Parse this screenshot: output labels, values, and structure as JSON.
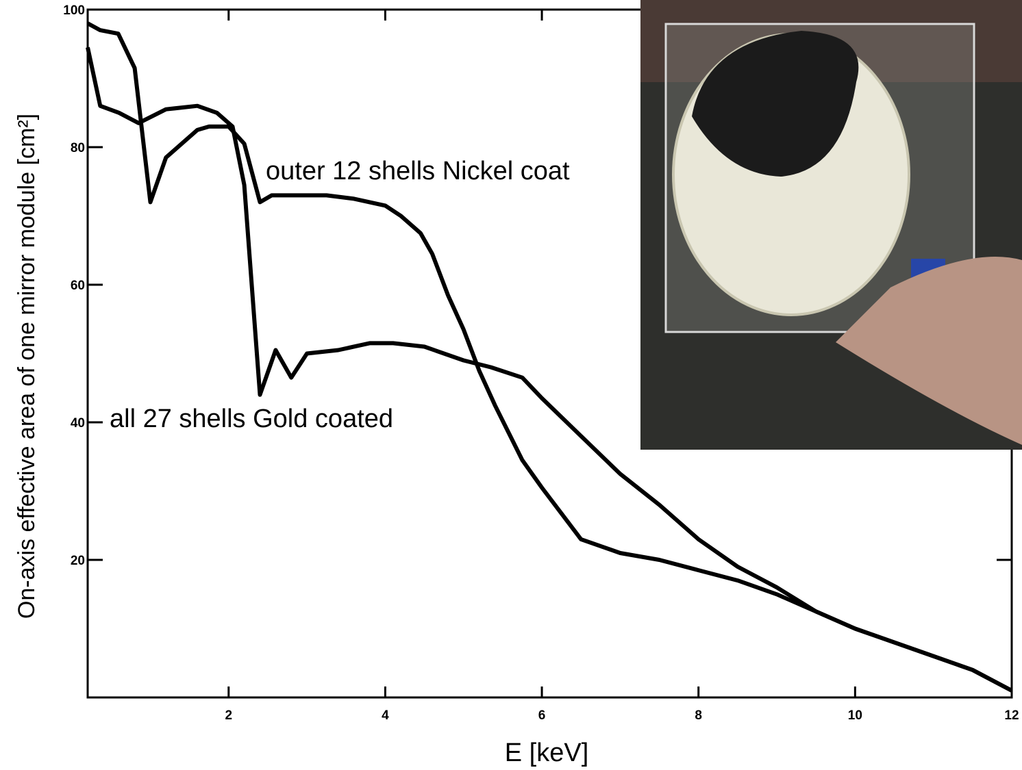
{
  "chart_data": {
    "type": "line",
    "x_label": "E [keV]",
    "y_label": "On-axis effective area of one mirror module [cm²]",
    "annotations": [
      "outer 12 shells Nickel coat",
      "all 27 shells Gold coated"
    ],
    "xlim": [
      0.2,
      12
    ],
    "ylim": [
      0,
      100
    ],
    "xticks": [
      2,
      4,
      6,
      8,
      10,
      12
    ],
    "yticks": [
      20,
      40,
      60,
      80,
      100
    ],
    "series": [
      {
        "color": "#000000",
        "x": [
          0.2,
          0.36,
          0.59,
          0.8,
          1.0,
          1.2,
          1.4,
          1.6,
          1.75,
          2.0,
          2.2,
          2.4,
          2.55,
          2.8,
          3.25,
          3.6,
          4.0,
          4.2,
          4.45,
          4.6,
          4.8,
          5.0,
          5.2,
          5.4,
          5.75,
          6.0,
          6.5,
          7.0,
          7.5,
          8.0,
          8.5,
          9.0,
          9.5,
          10.0,
          10.5,
          11.0,
          11.5,
          12.0
        ],
        "values": [
          98,
          97,
          96.5,
          91.5,
          72,
          78.5,
          80.5,
          82.5,
          83,
          83,
          80.5,
          72,
          73,
          73,
          73,
          72.5,
          71.5,
          70,
          67.5,
          64.5,
          58.5,
          53.5,
          47.5,
          42.5,
          34.5,
          30.5,
          23,
          21,
          20,
          18.5,
          17,
          15,
          12.5,
          10,
          8,
          6,
          4,
          1
        ]
      },
      {
        "color": "#000000",
        "x": [
          0.2,
          0.36,
          0.6,
          0.85,
          1.2,
          1.6,
          1.85,
          2.05,
          2.2,
          2.4,
          2.6,
          2.8,
          3.0,
          3.4,
          3.8,
          4.1,
          4.5,
          5.0,
          5.35,
          5.75,
          6.0,
          6.5,
          7.0,
          7.5,
          8.0,
          8.5,
          9.0,
          9.5,
          10.0,
          10.5,
          11.0,
          11.5,
          12.0
        ],
        "values": [
          94.5,
          86,
          85,
          83.5,
          85.5,
          86,
          85,
          83,
          74.5,
          44,
          50.5,
          46.5,
          50,
          50.5,
          51.5,
          51.5,
          51,
          49,
          48,
          46.5,
          43.5,
          38,
          32.5,
          28,
          23,
          19,
          16,
          12.5,
          10,
          8,
          6,
          4,
          1
        ]
      }
    ]
  }
}
